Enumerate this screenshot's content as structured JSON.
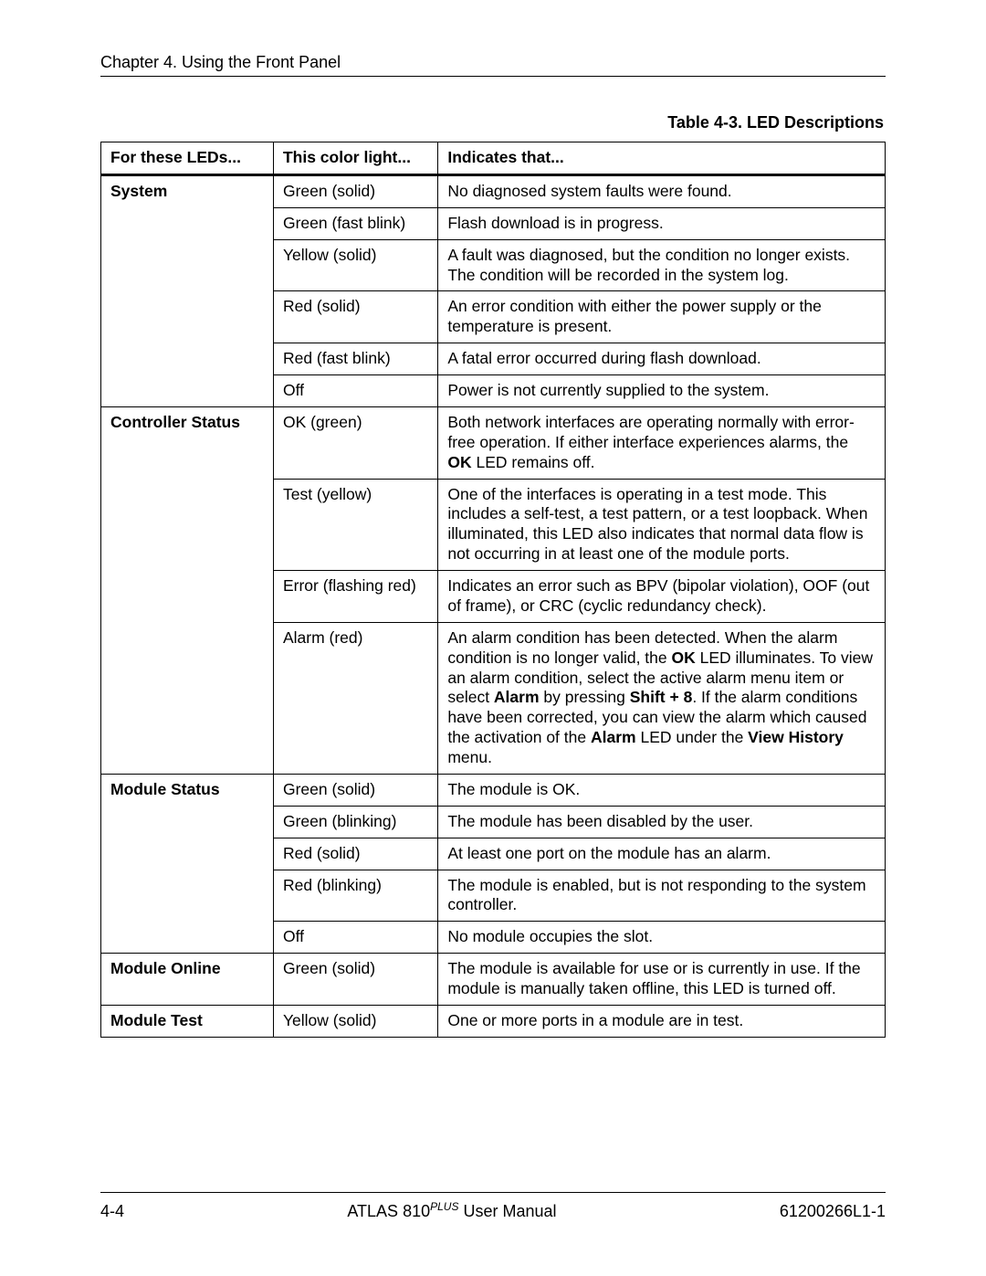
{
  "header": {
    "chapter": "Chapter 4.  Using the Front Panel"
  },
  "caption": "Table 4-3.  LED Descriptions",
  "columns": {
    "led": "For these LEDs...",
    "color": "This color light...",
    "indicates": "Indicates that..."
  },
  "groups": [
    {
      "led": "System",
      "rows": [
        {
          "color": "Green (solid)",
          "indicates_html": "No diagnosed system faults were found."
        },
        {
          "color": "Green (fast blink)",
          "indicates_html": "Flash download is in progress."
        },
        {
          "color": "Yellow (solid)",
          "indicates_html": "A fault was diagnosed, but the condition no longer exists. The condition will be recorded in the system log."
        },
        {
          "color": "Red (solid)",
          "indicates_html": "An error condition with either the power supply or the temperature is present."
        },
        {
          "color": "Red (fast blink)",
          "indicates_html": "A fatal error occurred during flash download."
        },
        {
          "color": "Off",
          "indicates_html": "Power is not currently supplied to the system."
        }
      ]
    },
    {
      "led": "Controller Status",
      "rows": [
        {
          "color": "OK (green)",
          "indicates_html": "Both network interfaces are operating normally with error-free operation. If either interface experiences alarms, the <span class=\"bold\">OK</span> LED remains off."
        },
        {
          "color": "Test (yellow)",
          "indicates_html": "One of the interfaces is operating in a test mode. This includes a self-test, a test pattern, or a test loopback. When illuminated, this LED also indicates that normal data flow is not occurring in at least one of the module ports."
        },
        {
          "color": "Error (flashing red)",
          "indicates_html": "Indicates an error such as BPV (bipolar violation), OOF (out of frame), or CRC (cyclic redundancy check)."
        },
        {
          "color": "Alarm (red)",
          "indicates_html": "An alarm condition has been detected. When the alarm condition is no longer valid, the <span class=\"bold\">OK</span> LED illuminates. To view an alarm condition, select the active alarm menu item or select <span class=\"bold\">Alarm</span> by pressing <span class=\"bold\">Shift + 8</span>. If the alarm conditions have been corrected, you can view the alarm which caused the activation of the <span class=\"bold\">Alarm</span> LED under the <span class=\"bold\">View History</span> menu."
        }
      ]
    },
    {
      "led": "Module Status",
      "rows": [
        {
          "color": "Green (solid)",
          "indicates_html": "The module is OK."
        },
        {
          "color": "Green (blinking)",
          "indicates_html": "The module has been disabled by the user."
        },
        {
          "color": "Red (solid)",
          "indicates_html": "At least one port on the module has an alarm."
        },
        {
          "color": "Red (blinking)",
          "indicates_html": "The module is enabled, but is not responding to the system controller."
        },
        {
          "color": "Off",
          "indicates_html": "No module occupies the slot."
        }
      ]
    },
    {
      "led": "Module Online",
      "rows": [
        {
          "color": "Green (solid)",
          "indicates_html": "The module is available for use or is currently in use. If the module is manually taken offline, this LED is turned off."
        }
      ]
    },
    {
      "led": "Module Test",
      "rows": [
        {
          "color": "Yellow (solid)",
          "indicates_html": "One or more ports in a module are in test."
        }
      ]
    }
  ],
  "footer": {
    "page": "4-4",
    "title_prefix": "ATLAS 810",
    "title_super": "PLUS",
    "title_suffix": " User Manual",
    "docnum": "61200266L1-1"
  }
}
